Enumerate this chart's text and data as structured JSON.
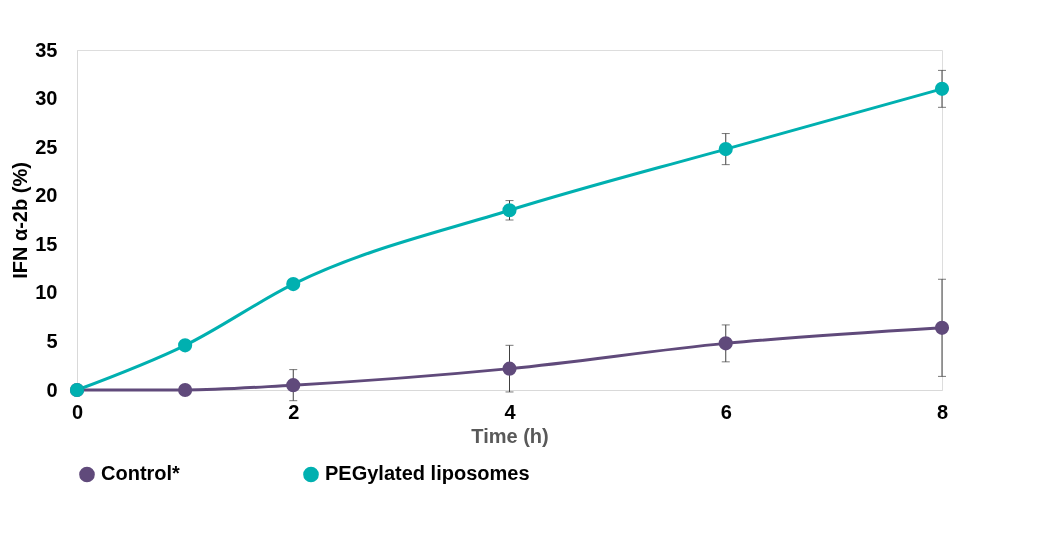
{
  "chart_data": {
    "type": "line",
    "xlabel": "Time (h)",
    "ylabel": "IFN α-2b (%)",
    "x": [
      0,
      1,
      2,
      4,
      6,
      8
    ],
    "series": [
      {
        "name": "Control*",
        "color": "#604a7b",
        "values": [
          0,
          0,
          0.5,
          2.2,
          4.8,
          6.4
        ],
        "errors": [
          null,
          null,
          1.6,
          2.4,
          1.9,
          5.0
        ]
      },
      {
        "name": "PEGylated liposomes",
        "color": "#00b0b0",
        "values": [
          0,
          4.6,
          10.9,
          18.5,
          24.8,
          31.0
        ],
        "errors": [
          null,
          null,
          null,
          1.0,
          1.6,
          1.9
        ]
      }
    ],
    "xlim": [
      0,
      8
    ],
    "xticks": [
      0,
      2,
      4,
      6,
      8
    ],
    "ylim": [
      0,
      35
    ],
    "yticks": [
      0,
      5,
      10,
      15,
      20,
      25,
      30,
      35
    ],
    "grid": false,
    "legend": "bottom",
    "marker": "circle",
    "line_style": "solid"
  }
}
